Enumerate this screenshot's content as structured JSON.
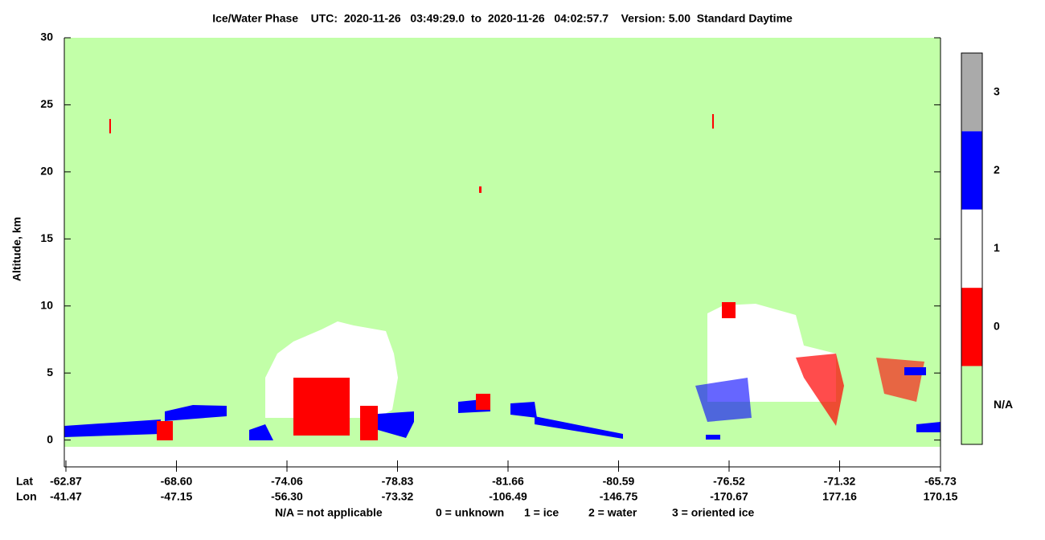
{
  "chart_data": {
    "type": "curtain",
    "title": "Ice/Water Phase    UTC:  2020-11-26   03:49:29.0  to  2020-11-26   04:02:57.7    Version: 5.00  Standard Daytime",
    "ylabel": "Altitude, km",
    "ylim": [
      -2,
      30
    ],
    "yticks": [
      0,
      5,
      10,
      15,
      20,
      25,
      30
    ],
    "x_row_labels": [
      "Lat",
      "Lon"
    ],
    "lat": [
      "-62.87",
      "-68.60",
      "-74.06",
      "-78.83",
      "-81.66",
      "-80.59",
      "-76.52",
      "-71.32",
      "-65.73"
    ],
    "lon": [
      "-41.47",
      "-47.15",
      "-56.30",
      "-73.32",
      "-106.49",
      "-146.75",
      "-170.67",
      "177.16",
      "170.15"
    ],
    "colorbar": [
      {
        "label": "3",
        "color": "#aaaaaa"
      },
      {
        "label": "2",
        "color": "#0000ff"
      },
      {
        "label": "1",
        "color": "#ffffff"
      },
      {
        "label": "0",
        "color": "#ff0000"
      },
      {
        "label": "N/A",
        "color": "#c2ffa8"
      }
    ],
    "legend": [
      "N/A = not applicable",
      "0 = unknown",
      "1 = ice",
      "2 = water",
      "3 = oriented ice"
    ]
  }
}
